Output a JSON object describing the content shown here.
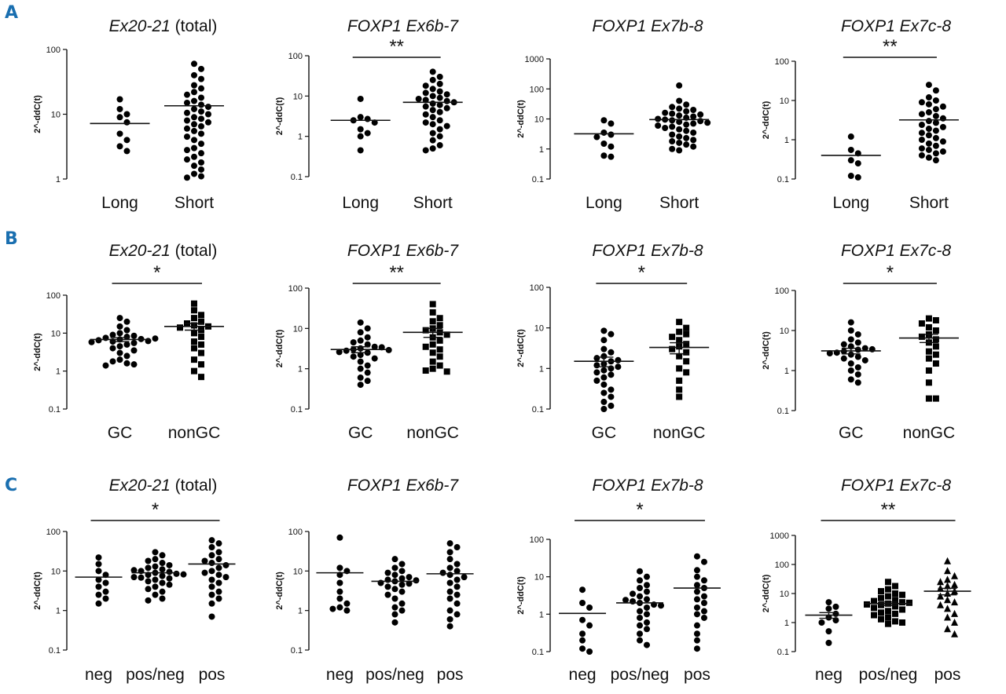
{
  "figure": {
    "rows": [
      {
        "letter": "A"
      },
      {
        "letter": "B"
      },
      {
        "letter": "C"
      }
    ]
  },
  "chart_data": [
    {
      "type": "scatter",
      "row": "A",
      "title_italic": "Ex20-21",
      "title_plain": " (total)",
      "ylabel": "2^-ddC(t)",
      "ylim": [
        1,
        100
      ],
      "yticks": [
        "1",
        "10",
        "100"
      ],
      "categories": [
        "Long",
        "Short"
      ],
      "significance": null,
      "groups": [
        {
          "name": "Long",
          "marker": "circle",
          "center": 7.2,
          "values": [
            17,
            12,
            10,
            9,
            7.5,
            5,
            4,
            3.2,
            2.7
          ]
        },
        {
          "name": "Short",
          "marker": "circle",
          "center": 13.5,
          "values": [
            60,
            50,
            40,
            35,
            28,
            25,
            22,
            20,
            18,
            16,
            15,
            14,
            13,
            12,
            11,
            10.5,
            10,
            9,
            8.5,
            8,
            7.5,
            7,
            6.5,
            6,
            5.5,
            5,
            4.5,
            4,
            3.5,
            3,
            2.8,
            2.5,
            2.2,
            2,
            1.8,
            1.6,
            1.4,
            1.2,
            1.1,
            1.05
          ]
        }
      ]
    },
    {
      "type": "scatter",
      "row": "A",
      "title_italic": "FOXP1 Ex6b-7",
      "title_plain": "",
      "ylabel": "2^-ddC(t)",
      "ylim": [
        0.1,
        100
      ],
      "yticks": [
        "0.1",
        "1",
        "10",
        "100"
      ],
      "categories": [
        "Long",
        "Short"
      ],
      "significance": "**",
      "groups": [
        {
          "name": "Long",
          "marker": "circle",
          "center": 2.5,
          "values": [
            8.5,
            3,
            2.7,
            2.5,
            2.2,
            1.5,
            1.2,
            1,
            0.45
          ]
        },
        {
          "name": "Short",
          "marker": "circle",
          "center": 7,
          "values": [
            40,
            30,
            25,
            20,
            18,
            15,
            13,
            12,
            11,
            10,
            9,
            8.5,
            8,
            7.5,
            7,
            6.5,
            6,
            5.5,
            5,
            4.5,
            4,
            3.5,
            3,
            2.5,
            2.2,
            2,
            1.8,
            1.5,
            1.2,
            1,
            0.8,
            0.6,
            0.5,
            0.45
          ]
        }
      ]
    },
    {
      "type": "scatter",
      "row": "A",
      "title_italic": "FOXP1 Ex7b-8",
      "title_plain": "",
      "ylabel": "2^-ddC(t)",
      "ylim": [
        0.1,
        1000
      ],
      "yticks": [
        "0.1",
        "1",
        "10",
        "100",
        "1000"
      ],
      "categories": [
        "Long",
        "Short"
      ],
      "significance": null,
      "groups": [
        {
          "name": "Long",
          "marker": "circle",
          "center": 3.2,
          "values": [
            9,
            7,
            3.5,
            3,
            2.5,
            1.5,
            1.2,
            0.6,
            0.55
          ]
        },
        {
          "name": "Short",
          "marker": "circle",
          "center": 9.5,
          "values": [
            130,
            40,
            30,
            25,
            22,
            20,
            18,
            16,
            15,
            14,
            13,
            12,
            11,
            10,
            9.5,
            9,
            8.5,
            8,
            7.5,
            7,
            6.5,
            6,
            5.5,
            5,
            4.5,
            4,
            3.5,
            3,
            2.6,
            2.3,
            2,
            1.8,
            1.6,
            1.4,
            1.2,
            1,
            0.9
          ]
        }
      ]
    },
    {
      "type": "scatter",
      "row": "A",
      "title_italic": "FOXP1 Ex7c-8",
      "title_plain": "",
      "ylabel": "2^-ddC(t)",
      "ylim": [
        0.1,
        100
      ],
      "yticks": [
        "0.1",
        "1",
        "10",
        "100"
      ],
      "categories": [
        "Long",
        "Short"
      ],
      "significance": "**",
      "groups": [
        {
          "name": "Long",
          "marker": "circle",
          "center": 0.4,
          "values": [
            1.2,
            0.55,
            0.45,
            0.3,
            0.25,
            0.12,
            0.11
          ]
        },
        {
          "name": "Short",
          "marker": "circle",
          "center": 3.2,
          "values": [
            25,
            18,
            12,
            10,
            9,
            8,
            7,
            6,
            5,
            4.5,
            4,
            3.5,
            3,
            2.7,
            2.4,
            2.1,
            1.9,
            1.7,
            1.5,
            1.3,
            1.1,
            1,
            0.9,
            0.8,
            0.7,
            0.6,
            0.55,
            0.5,
            0.45,
            0.4,
            0.35,
            0.3
          ]
        }
      ]
    },
    {
      "type": "scatter",
      "row": "B",
      "title_italic": "Ex20-21",
      "title_plain": " (total)",
      "ylabel": "2^-ddC(t)",
      "ylim": [
        0.1,
        100
      ],
      "yticks": [
        "0.1",
        "1",
        "10",
        "100"
      ],
      "categories": [
        "GC",
        "nonGC"
      ],
      "significance": "*",
      "groups": [
        {
          "name": "GC",
          "marker": "circle",
          "center": 6.8,
          "sem": 0.8,
          "values": [
            25,
            20,
            15,
            12,
            10,
            9,
            8.5,
            8,
            7.5,
            7,
            6.8,
            6.5,
            6,
            5.5,
            5,
            4.5,
            4,
            3.5,
            3,
            2.5,
            2,
            1.8,
            1.6,
            1.5,
            1.4,
            6.2,
            5.8,
            7.2
          ]
        },
        {
          "name": "nonGC",
          "marker": "square",
          "center": 15,
          "sem": 3,
          "values": [
            60,
            40,
            30,
            25,
            20,
            18,
            16,
            15,
            14,
            12,
            10,
            8,
            6,
            5,
            4,
            3,
            2,
            1.5,
            1,
            0.7
          ]
        }
      ]
    },
    {
      "type": "scatter",
      "row": "B",
      "title_italic": "FOXP1 Ex6b-7",
      "title_plain": "",
      "ylabel": "2^-ddC(t)",
      "ylim": [
        0.1,
        100
      ],
      "yticks": [
        "0.1",
        "1",
        "10",
        "100"
      ],
      "categories": [
        "GC",
        "nonGC"
      ],
      "significance": "**",
      "groups": [
        {
          "name": "GC",
          "marker": "circle",
          "center": 3,
          "sem": 0.5,
          "values": [
            14,
            10,
            8,
            6,
            5,
            4.5,
            4,
            3.5,
            3.2,
            3,
            2.8,
            2.5,
            2.2,
            2,
            1.8,
            1.5,
            1.2,
            1,
            0.8,
            0.6,
            0.5,
            0.4,
            3.4,
            2.6,
            2.9
          ]
        },
        {
          "name": "nonGC",
          "marker": "square",
          "center": 8,
          "sem": 2,
          "values": [
            40,
            25,
            18,
            15,
            12,
            10,
            9,
            8,
            7,
            6,
            5,
            4,
            3.5,
            3,
            2.5,
            2,
            1.5,
            1.2,
            1,
            0.9,
            0.85
          ]
        }
      ]
    },
    {
      "type": "scatter",
      "row": "B",
      "title_italic": "FOXP1 Ex7b-8",
      "title_plain": "",
      "ylabel": "2^-ddC(t)",
      "ylim": [
        0.1,
        100
      ],
      "yticks": [
        "0.1",
        "1",
        "10",
        "100"
      ],
      "categories": [
        "GC",
        "nonGC"
      ],
      "significance": "*",
      "groups": [
        {
          "name": "GC",
          "marker": "circle",
          "center": 1.5,
          "sem": 0.4,
          "values": [
            8.5,
            7,
            5,
            3,
            2.5,
            2,
            1.8,
            1.5,
            1.3,
            1.2,
            1,
            0.9,
            0.8,
            0.7,
            0.6,
            0.5,
            0.4,
            0.3,
            0.25,
            0.2,
            0.15,
            0.12,
            0.1,
            1.1,
            1.6
          ]
        },
        {
          "name": "nonGC",
          "marker": "square",
          "center": 3.3,
          "sem": 1,
          "values": [
            14,
            10,
            8,
            7,
            6,
            5,
            4,
            3.5,
            3,
            2.5,
            2,
            1.5,
            1,
            0.8,
            0.5,
            0.3,
            0.2
          ]
        }
      ]
    },
    {
      "type": "scatter",
      "row": "B",
      "title_italic": "FOXP1 Ex7c-8",
      "title_plain": "",
      "ylabel": "2^-ddC(t)",
      "ylim": [
        0.1,
        100
      ],
      "yticks": [
        "0.1",
        "1",
        "10",
        "100"
      ],
      "categories": [
        "GC",
        "nonGC"
      ],
      "significance": "*",
      "groups": [
        {
          "name": "GC",
          "marker": "circle",
          "center": 3.1,
          "sem": 0.5,
          "values": [
            16,
            10,
            8,
            6,
            5,
            4.5,
            4,
            3.6,
            3.3,
            3,
            2.8,
            2.5,
            2.2,
            2,
            1.8,
            1.5,
            1.2,
            1,
            0.8,
            0.6,
            0.5,
            3.4,
            2.7
          ]
        },
        {
          "name": "nonGC",
          "marker": "square",
          "center": 6.5,
          "sem": 1.5,
          "values": [
            20,
            18,
            15,
            12,
            10,
            8,
            7,
            6,
            5,
            4,
            3,
            2.5,
            2,
            1.5,
            1,
            0.5,
            0.2,
            0.2
          ]
        }
      ]
    },
    {
      "type": "scatter",
      "row": "C",
      "title_italic": "Ex20-21",
      "title_plain": " (total)",
      "ylabel": "2^-ddC(t)",
      "ylim": [
        0.1,
        100
      ],
      "yticks": [
        "0.1",
        "1",
        "10",
        "100"
      ],
      "categories": [
        "neg",
        "pos/neg",
        "pos"
      ],
      "significance": "*",
      "sig_span": [
        0,
        2
      ],
      "groups": [
        {
          "name": "neg",
          "marker": "circle",
          "center": 7,
          "values": [
            22,
            15,
            10,
            8,
            6,
            5,
            4,
            3,
            2.5,
            2,
            1.5
          ]
        },
        {
          "name": "pos/neg",
          "marker": "circle",
          "center": 9,
          "values": [
            30,
            25,
            20,
            18,
            16,
            14,
            13,
            12,
            11,
            10,
            9.5,
            9,
            8.5,
            8,
            7.5,
            7,
            6.5,
            6,
            5.5,
            5,
            4.5,
            4,
            3.5,
            3,
            2.5,
            2,
            1.8,
            10.5,
            8.2,
            6.8
          ]
        },
        {
          "name": "pos",
          "marker": "circle",
          "center": 15,
          "values": [
            60,
            50,
            40,
            30,
            25,
            20,
            18,
            16,
            14,
            12,
            10,
            9,
            8,
            7,
            6,
            5,
            4,
            3,
            2.5,
            2,
            1.5,
            0.7
          ]
        }
      ]
    },
    {
      "type": "scatter",
      "row": "C",
      "title_italic": "FOXP1 Ex6b-7",
      "title_plain": "",
      "ylabel": "2^-ddC(t)",
      "ylim": [
        0.1,
        100
      ],
      "yticks": [
        "0.1",
        "1",
        "10",
        "100"
      ],
      "categories": [
        "neg",
        "pos/neg",
        "pos"
      ],
      "significance": null,
      "groups": [
        {
          "name": "neg",
          "marker": "circle",
          "center": 9,
          "values": [
            70,
            12,
            10,
            8,
            5,
            3,
            2,
            1.5,
            1.2,
            1.1,
            1
          ]
        },
        {
          "name": "pos/neg",
          "marker": "circle",
          "center": 5.5,
          "values": [
            20,
            15,
            12,
            10,
            9,
            8,
            7,
            6.5,
            6,
            5.5,
            5,
            4.5,
            4,
            3.5,
            3,
            2.5,
            2,
            1.5,
            1.2,
            1,
            0.8,
            0.5,
            5.8,
            4.8
          ]
        },
        {
          "name": "pos",
          "marker": "circle",
          "center": 8.5,
          "values": [
            50,
            40,
            30,
            20,
            15,
            12,
            10,
            9,
            8,
            7,
            6,
            5,
            4,
            3,
            2.5,
            2,
            1.5,
            1,
            0.8,
            0.6,
            0.4
          ]
        }
      ]
    },
    {
      "type": "scatter",
      "row": "C",
      "title_italic": "FOXP1 Ex7b-8",
      "title_plain": "",
      "ylabel": "2^-ddC(t)",
      "ylim": [
        0.1,
        100
      ],
      "yticks": [
        "0.1",
        "1",
        "10",
        "100"
      ],
      "categories": [
        "neg",
        "pos/neg",
        "pos"
      ],
      "significance": "*",
      "sig_span": [
        0,
        2
      ],
      "groups": [
        {
          "name": "neg",
          "marker": "circle",
          "center": 1.05,
          "values": [
            4.5,
            2,
            1.5,
            0.7,
            0.5,
            0.3,
            0.2,
            0.12,
            0.1
          ]
        },
        {
          "name": "pos/neg",
          "marker": "circle",
          "center": 2,
          "values": [
            14,
            10,
            8,
            6,
            5,
            4,
            3.5,
            3,
            2.5,
            2.2,
            2,
            1.8,
            1.5,
            1.2,
            1,
            0.8,
            0.6,
            0.5,
            0.4,
            0.3,
            0.2,
            0.15,
            2.4,
            1.7
          ]
        },
        {
          "name": "pos",
          "marker": "circle",
          "center": 5,
          "values": [
            35,
            25,
            15,
            10,
            8,
            6,
            5,
            4,
            3,
            2.5,
            2,
            1.5,
            1.2,
            1,
            0.8,
            0.5,
            0.3,
            0.2,
            0.12
          ]
        }
      ]
    },
    {
      "type": "scatter",
      "row": "C",
      "title_italic": "FOXP1 Ex7c-8",
      "title_plain": "",
      "ylabel": "2^-ddC(t)",
      "ylim": [
        0.1,
        1000
      ],
      "yticks": [
        "0.1",
        "1",
        "10",
        "100",
        "1000"
      ],
      "categories": [
        "neg",
        "pos/neg",
        "pos"
      ],
      "significance": "**",
      "sig_span": [
        0,
        2
      ],
      "groups": [
        {
          "name": "neg",
          "marker": "circle",
          "center": 1.8,
          "sem": 0.4,
          "values": [
            5,
            3.5,
            3,
            2,
            1.5,
            1.2,
            1,
            0.5,
            0.2
          ]
        },
        {
          "name": "pos/neg",
          "marker": "square",
          "center": 4.5,
          "sem": 0.6,
          "values": [
            25,
            18,
            14,
            12,
            10,
            9,
            8,
            7,
            6,
            5.5,
            5,
            4.5,
            4,
            3.6,
            3.2,
            2.8,
            2.5,
            2.2,
            2,
            1.8,
            1.5,
            1.3,
            1.1,
            1,
            0.9,
            4.8,
            4.2
          ]
        },
        {
          "name": "pos",
          "marker": "triangle",
          "center": 12,
          "sem": 3,
          "values": [
            130,
            60,
            40,
            30,
            25,
            20,
            18,
            15,
            12,
            10,
            8,
            6,
            5,
            4,
            3,
            2,
            1.5,
            1,
            0.6,
            0.4
          ]
        }
      ]
    }
  ]
}
